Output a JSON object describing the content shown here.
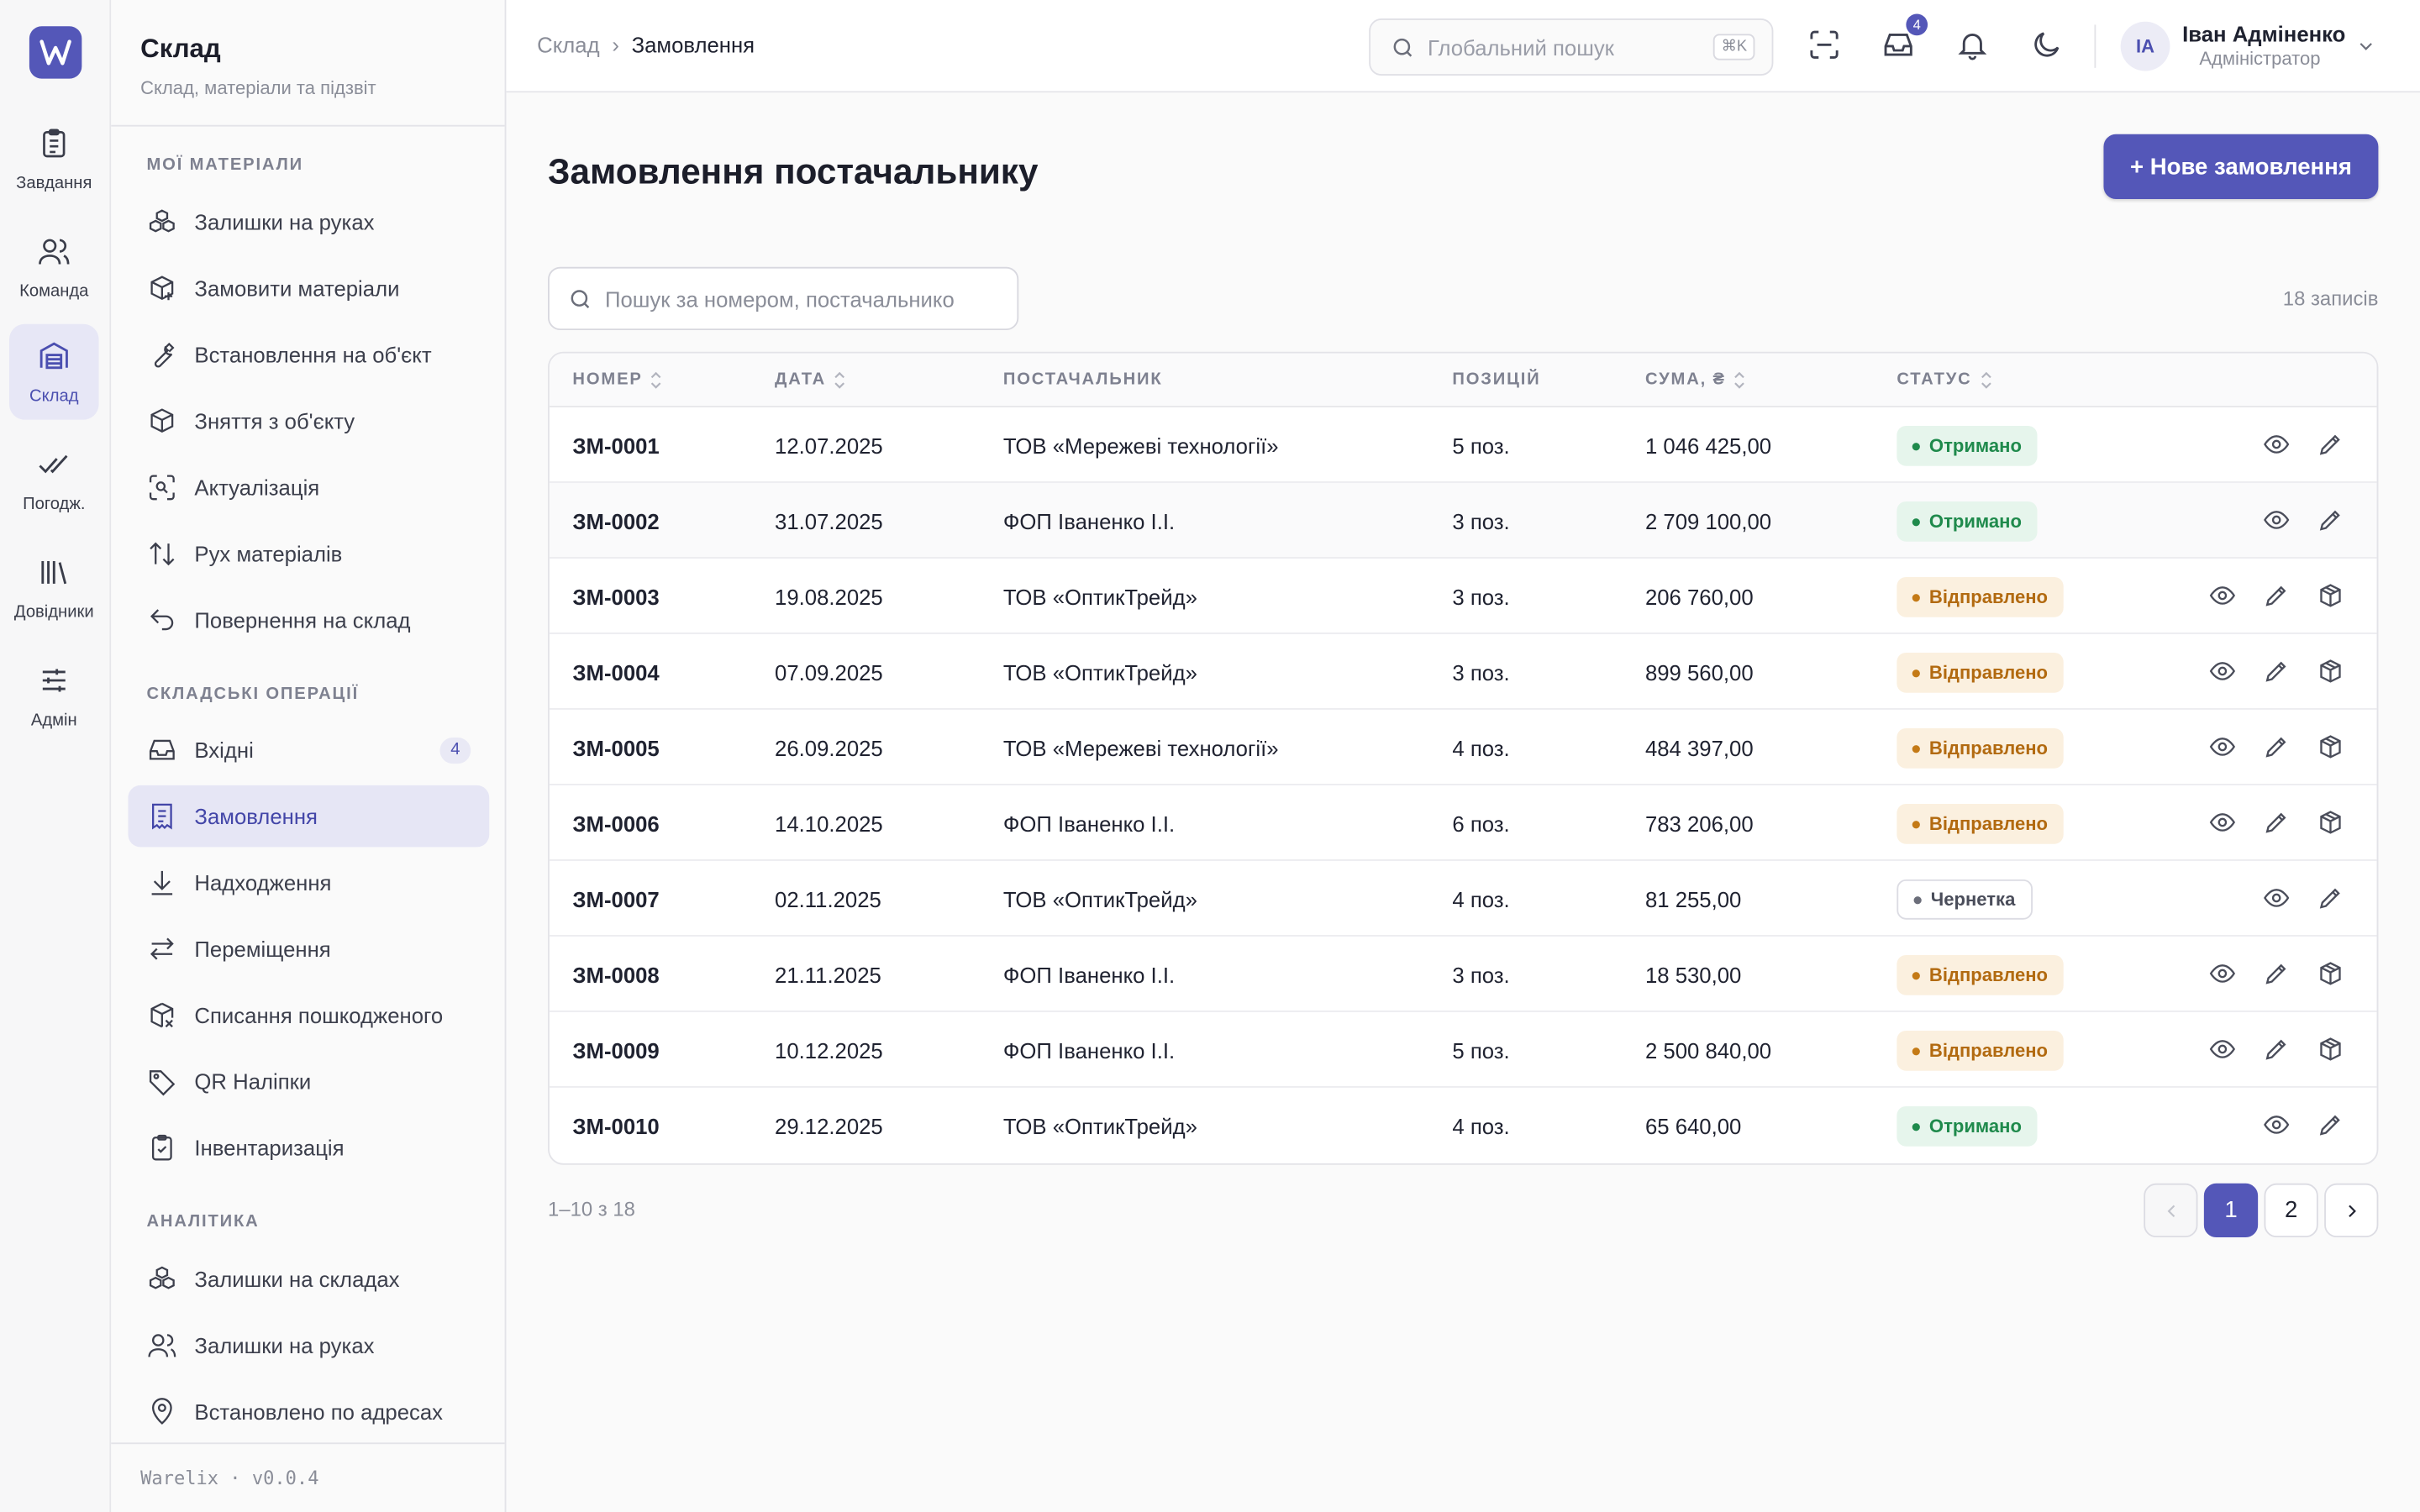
{
  "rail": {
    "items": [
      {
        "label": "Завдання",
        "icon": "clipboard-icon"
      },
      {
        "label": "Команда",
        "icon": "users-icon"
      },
      {
        "label": "Склад",
        "icon": "warehouse-icon",
        "active": true
      },
      {
        "label": "Погодж.",
        "icon": "double-check-icon"
      },
      {
        "label": "Довідники",
        "icon": "library-icon"
      },
      {
        "label": "Адмін",
        "icon": "sliders-icon"
      }
    ]
  },
  "sidebar": {
    "title": "Склад",
    "subtitle": "Склад, матеріали та підзвіт",
    "sections": [
      {
        "title": "Мої матеріали",
        "items": [
          {
            "label": "Залишки на руках",
            "icon": "boxes-icon"
          },
          {
            "label": "Замовити матеріали",
            "icon": "package-plus-icon"
          },
          {
            "label": "Встановлення на об'єкт",
            "icon": "wrench-icon"
          },
          {
            "label": "Зняття з об'єкту",
            "icon": "package-minus-icon"
          },
          {
            "label": "Актуалізація",
            "icon": "scan-search-icon"
          },
          {
            "label": "Рух матеріалів",
            "icon": "arrow-up-down-icon"
          },
          {
            "label": "Повернення на склад",
            "icon": "undo-icon"
          }
        ]
      },
      {
        "title": "Складські операції",
        "items": [
          {
            "label": "Вхідні",
            "icon": "inbox-icon",
            "badge": "4"
          },
          {
            "label": "Замовлення",
            "icon": "receipt-icon",
            "active": true
          },
          {
            "label": "Надходження",
            "icon": "download-icon"
          },
          {
            "label": "Переміщення",
            "icon": "arrow-left-right-icon"
          },
          {
            "label": "Списання пошкодженого",
            "icon": "package-x-icon"
          },
          {
            "label": "QR Наліпки",
            "icon": "tag-icon"
          },
          {
            "label": "Інвентаризація",
            "icon": "clipboard-check-icon"
          }
        ]
      },
      {
        "title": "Аналітика",
        "items": [
          {
            "label": "Залишки на складах",
            "icon": "boxes-icon"
          },
          {
            "label": "Залишки на руках",
            "icon": "users-icon"
          },
          {
            "label": "Встановлено по адресах",
            "icon": "map-pin-icon"
          }
        ]
      }
    ],
    "footer": "Warelix · v0.0.4"
  },
  "topbar": {
    "breadcrumb": [
      "Склад",
      "Замовлення"
    ],
    "search_placeholder": "Глобальний пошук",
    "search_shortcut": "⌘K",
    "inbox_badge": "4",
    "user": {
      "initials": "IA",
      "name": "Іван Адміненко",
      "role": "Адміністратор"
    }
  },
  "page": {
    "title": "Замовлення постачальнику",
    "new_button": "+ Нове замовлення",
    "search_placeholder": "Пошук за номером, постачальнико",
    "records_count": "18 записів"
  },
  "table": {
    "columns": [
      "Номер",
      "Дата",
      "Постачальник",
      "Позицій",
      "Сума, ₴",
      "Статус"
    ],
    "rows": [
      {
        "number": "ЗМ-0001",
        "date": "12.07.2025",
        "supplier": "ТОВ «Мережеві технології»",
        "items": "5 поз.",
        "sum": "1 046 425,00",
        "status": "Отримано",
        "kind": "recv"
      },
      {
        "number": "ЗМ-0002",
        "date": "31.07.2025",
        "supplier": "ФОП Іваненко І.І.",
        "items": "3 поз.",
        "sum": "2 709 100,00",
        "status": "Отримано",
        "kind": "recv"
      },
      {
        "number": "ЗМ-0003",
        "date": "19.08.2025",
        "supplier": "ТОВ «ОптикТрейд»",
        "items": "3 поз.",
        "sum": "206 760,00",
        "status": "Відправлено",
        "kind": "sent"
      },
      {
        "number": "ЗМ-0004",
        "date": "07.09.2025",
        "supplier": "ТОВ «ОптикТрейд»",
        "items": "3 поз.",
        "sum": "899 560,00",
        "status": "Відправлено",
        "kind": "sent"
      },
      {
        "number": "ЗМ-0005",
        "date": "26.09.2025",
        "supplier": "ТОВ «Мережеві технології»",
        "items": "4 поз.",
        "sum": "484 397,00",
        "status": "Відправлено",
        "kind": "sent"
      },
      {
        "number": "ЗМ-0006",
        "date": "14.10.2025",
        "supplier": "ФОП Іваненко І.І.",
        "items": "6 поз.",
        "sum": "783 206,00",
        "status": "Відправлено",
        "kind": "sent"
      },
      {
        "number": "ЗМ-0007",
        "date": "02.11.2025",
        "supplier": "ТОВ «ОптикТрейд»",
        "items": "4 поз.",
        "sum": "81 255,00",
        "status": "Чернетка",
        "kind": "draft"
      },
      {
        "number": "ЗМ-0008",
        "date": "21.11.2025",
        "supplier": "ФОП Іваненко І.І.",
        "items": "3 поз.",
        "sum": "18 530,00",
        "status": "Відправлено",
        "kind": "sent"
      },
      {
        "number": "ЗМ-0009",
        "date": "10.12.2025",
        "supplier": "ФОП Іваненко І.І.",
        "items": "5 поз.",
        "sum": "2 500 840,00",
        "status": "Відправлено",
        "kind": "sent"
      },
      {
        "number": "ЗМ-0010",
        "date": "29.12.2025",
        "supplier": "ТОВ «ОптикТрейд»",
        "items": "4 поз.",
        "sum": "65 640,00",
        "status": "Отримано",
        "kind": "recv"
      }
    ]
  },
  "pagination": {
    "info": "1–10 з 18",
    "pages": [
      "1",
      "2"
    ],
    "current": "1"
  },
  "colors": {
    "accent": "#5457b8",
    "received": "#1f8a4c",
    "sent": "#b26a10"
  }
}
